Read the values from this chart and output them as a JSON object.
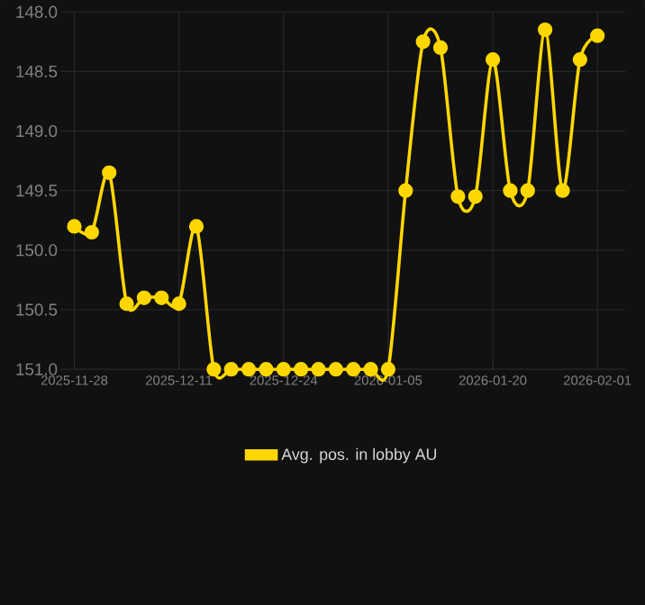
{
  "chart_data": {
    "type": "line",
    "categories": [
      "2025-11-28",
      null,
      null,
      null,
      null,
      null,
      "2025-12-11",
      null,
      null,
      null,
      null,
      null,
      "2025-12-24",
      null,
      null,
      null,
      null,
      null,
      "2026-01-05",
      null,
      null,
      null,
      null,
      null,
      "2026-01-20",
      null,
      null,
      null,
      null,
      null,
      "2026-02-01"
    ],
    "series": [
      {
        "name": "Avg. pos. in lobby AU",
        "color": "#ffd700",
        "values": [
          149.8,
          149.85,
          149.35,
          150.45,
          150.4,
          150.4,
          150.45,
          149.8,
          151.0,
          151.0,
          151.0,
          151.0,
          151.0,
          151.0,
          151.0,
          151.0,
          151.0,
          151.0,
          151.0,
          149.5,
          148.25,
          148.3,
          149.55,
          149.55,
          148.4,
          149.5,
          149.5,
          148.15,
          149.5,
          148.4,
          148.2
        ]
      }
    ],
    "ylim": [
      151.0,
      148.0
    ],
    "yticks": [
      {
        "value": 148.0,
        "label": "148.0"
      },
      {
        "value": 148.5,
        "label": "148.5"
      },
      {
        "value": 149.0,
        "label": "149.0"
      },
      {
        "value": 149.5,
        "label": "149.5"
      },
      {
        "value": 150.0,
        "label": "150.0"
      },
      {
        "value": 150.5,
        "label": "150.5"
      },
      {
        "value": 151.0,
        "label": "151.0"
      }
    ],
    "grid": true,
    "legend": "bottom",
    "marker": "circle",
    "line_style": "solid"
  }
}
